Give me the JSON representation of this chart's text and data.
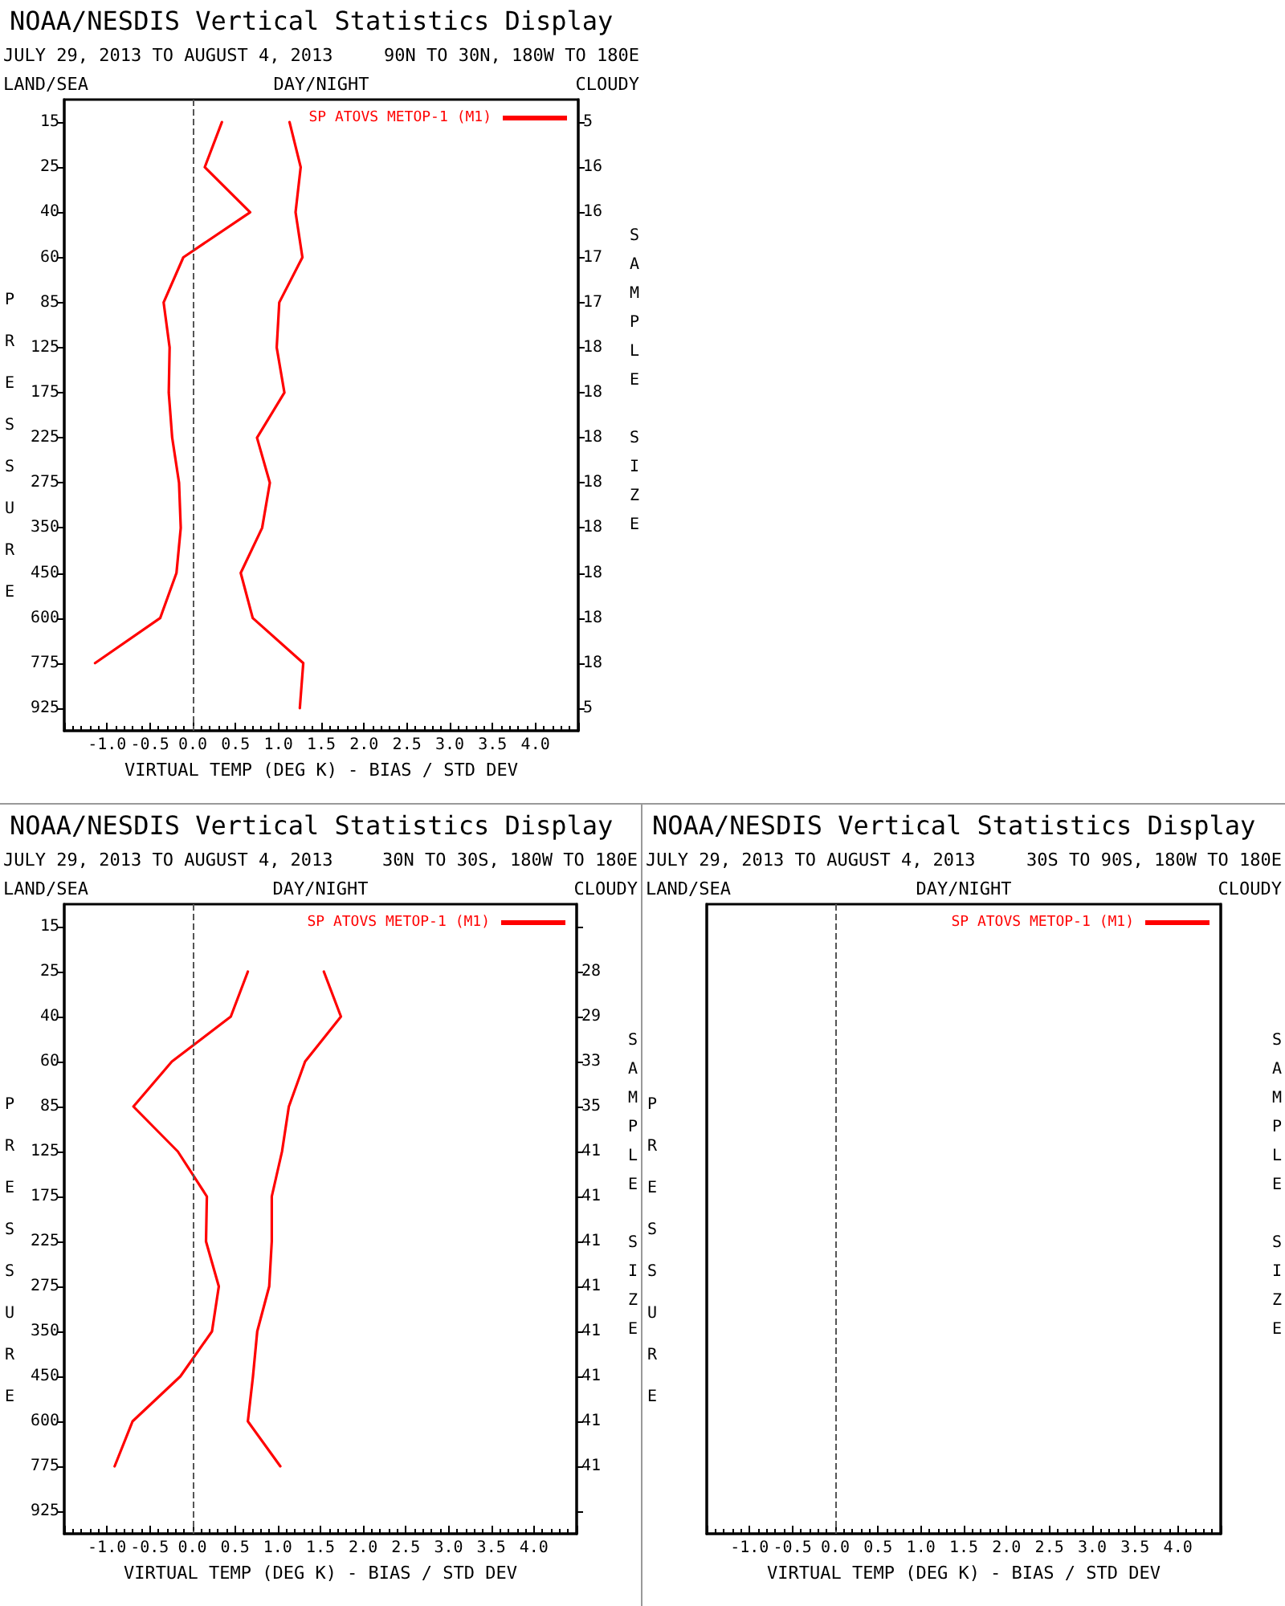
{
  "chart_data": [
    {
      "type": "line",
      "orientation": "horizontal",
      "title": "NOAA/NESDIS Vertical Statistics Display",
      "subtitle": "JULY 29, 2013 TO AUGUST 4, 2013",
      "annotations": [
        "90N TO 30N, 180W TO 180E",
        "LAND/SEA",
        "DAY/NIGHT",
        "CLOUDY"
      ],
      "xlabel": "VIRTUAL TEMP (DEG K) - BIAS / STD DEV",
      "ylabel": "PRESSURE",
      "y2label": "SAMPLE SIZE",
      "categories": [
        "15",
        "25",
        "40",
        "60",
        "85",
        "125",
        "175",
        "225",
        "275",
        "350",
        "450",
        "600",
        "775",
        "925"
      ],
      "y2_categories": [
        "5",
        "16",
        "16",
        "17",
        "17",
        "18",
        "18",
        "18",
        "18",
        "18",
        "18",
        "18",
        "18",
        "5"
      ],
      "xlim": [
        -1.5,
        4.5
      ],
      "xticks": [
        {
          "value": -1,
          "label": "-1.0"
        },
        {
          "value": -0.5,
          "label": "-0.5"
        },
        {
          "value": 0,
          "label": "0.0"
        },
        {
          "value": 0.5,
          "label": "0.5"
        },
        {
          "value": 1,
          "label": "1.0"
        },
        {
          "value": 1.5,
          "label": "1.5"
        },
        {
          "value": 2,
          "label": "2.0"
        },
        {
          "value": 2.5,
          "label": "2.5"
        },
        {
          "value": 3,
          "label": "3.0"
        },
        {
          "value": 3.5,
          "label": "3.5"
        },
        {
          "value": 4,
          "label": "4.0"
        }
      ],
      "series": [
        {
          "name": "SP ATOVS METOP-1 (M1)",
          "color": "#ff0000",
          "values": [
            0.34,
            0.14,
            0.67,
            -0.11,
            -0.34,
            -0.27,
            -0.28,
            -0.24,
            -0.16,
            -0.14,
            -0.19,
            -0.38,
            -1.14,
            null
          ]
        },
        {
          "color": "#ff0000",
          "values": [
            1.13,
            1.26,
            1.2,
            1.28,
            1.01,
            0.98,
            1.07,
            0.75,
            0.9,
            0.81,
            0.56,
            0.7,
            1.29,
            1.25
          ]
        }
      ],
      "ref_lines": [
        {
          "axis": "x",
          "value": 0,
          "color": "#555555",
          "line_style": "dashed"
        }
      ],
      "legend": "top right",
      "grid": false,
      "marker": "none"
    },
    {
      "type": "line",
      "orientation": "horizontal",
      "title": "NOAA/NESDIS Vertical Statistics Display",
      "subtitle": "JULY 29, 2013 TO AUGUST 4, 2013",
      "annotations": [
        "30N TO 30S, 180W TO 180E",
        "LAND/SEA",
        "DAY/NIGHT",
        "CLOUDY"
      ],
      "xlabel": "VIRTUAL TEMP (DEG K) - BIAS / STD DEV",
      "ylabel": "PRESSURE",
      "y2label": "SAMPLE SIZE",
      "categories": [
        "15",
        "25",
        "40",
        "60",
        "85",
        "125",
        "175",
        "225",
        "275",
        "350",
        "450",
        "600",
        "775",
        "925"
      ],
      "y2_categories": [
        null,
        "28",
        "29",
        "33",
        "35",
        "41",
        "41",
        "41",
        "41",
        "41",
        "41",
        "41",
        "41",
        null
      ],
      "xlim": [
        -1.5,
        4.5
      ],
      "xticks": [
        {
          "value": -1,
          "label": "-1.0"
        },
        {
          "value": -0.5,
          "label": "-0.5"
        },
        {
          "value": 0,
          "label": "0.0"
        },
        {
          "value": 0.5,
          "label": "0.5"
        },
        {
          "value": 1,
          "label": "1.0"
        },
        {
          "value": 1.5,
          "label": "1.5"
        },
        {
          "value": 2,
          "label": "2.0"
        },
        {
          "value": 2.5,
          "label": "2.5"
        },
        {
          "value": 3,
          "label": "3.0"
        },
        {
          "value": 3.5,
          "label": "3.5"
        },
        {
          "value": 4,
          "label": "4.0"
        }
      ],
      "series": [
        {
          "name": "SP ATOVS METOP-1 (M1)",
          "color": "#ff0000",
          "values": [
            null,
            0.65,
            0.45,
            -0.24,
            -0.69,
            -0.17,
            0.17,
            0.16,
            0.31,
            0.23,
            -0.14,
            -0.7,
            -0.91,
            null
          ]
        },
        {
          "color": "#ff0000",
          "values": [
            null,
            1.54,
            1.74,
            1.32,
            1.13,
            1.05,
            0.93,
            0.93,
            0.9,
            0.76,
            0.71,
            0.65,
            1.03,
            null
          ]
        }
      ],
      "ref_lines": [
        {
          "axis": "x",
          "value": 0,
          "color": "#555555",
          "line_style": "dashed"
        }
      ],
      "legend": "top right",
      "grid": false,
      "marker": "none"
    },
    {
      "type": "line",
      "orientation": "horizontal",
      "title": "NOAA/NESDIS Vertical Statistics Display",
      "subtitle": "JULY 29, 2013 TO AUGUST 4, 2013",
      "annotations": [
        "30S TO 90S, 180W TO 180E",
        "LAND/SEA",
        "DAY/NIGHT",
        "CLOUDY"
      ],
      "xlabel": "VIRTUAL TEMP (DEG K) - BIAS / STD DEV",
      "ylabel": "PRESSURE",
      "y2label": "SAMPLE SIZE",
      "categories": [
        null,
        null,
        null,
        null,
        null,
        null,
        null,
        null,
        null,
        null,
        null,
        null,
        null,
        null
      ],
      "xlim": [
        -1.5,
        4.5
      ],
      "xticks": [
        {
          "value": -1,
          "label": "-1.0"
        },
        {
          "value": -0.5,
          "label": "-0.5"
        },
        {
          "value": 0,
          "label": "0.0"
        },
        {
          "value": 0.5,
          "label": "0.5"
        },
        {
          "value": 1,
          "label": "1.0"
        },
        {
          "value": 1.5,
          "label": "1.5"
        },
        {
          "value": 2,
          "label": "2.0"
        },
        {
          "value": 2.5,
          "label": "2.5"
        },
        {
          "value": 3,
          "label": "3.0"
        },
        {
          "value": 3.5,
          "label": "3.5"
        },
        {
          "value": 4,
          "label": "4.0"
        }
      ],
      "series": [
        {
          "name": "SP ATOVS METOP-1 (M1)",
          "color": "#ff0000",
          "values": [
            null,
            null,
            null,
            null,
            null,
            null,
            null,
            null,
            null,
            null,
            null,
            null,
            null,
            null
          ]
        }
      ],
      "ref_lines": [
        {
          "axis": "x",
          "value": 0,
          "color": "#555555",
          "line_style": "dashed"
        }
      ],
      "legend": "top right",
      "grid": false,
      "marker": "none",
      "tick_labels": "x"
    }
  ]
}
